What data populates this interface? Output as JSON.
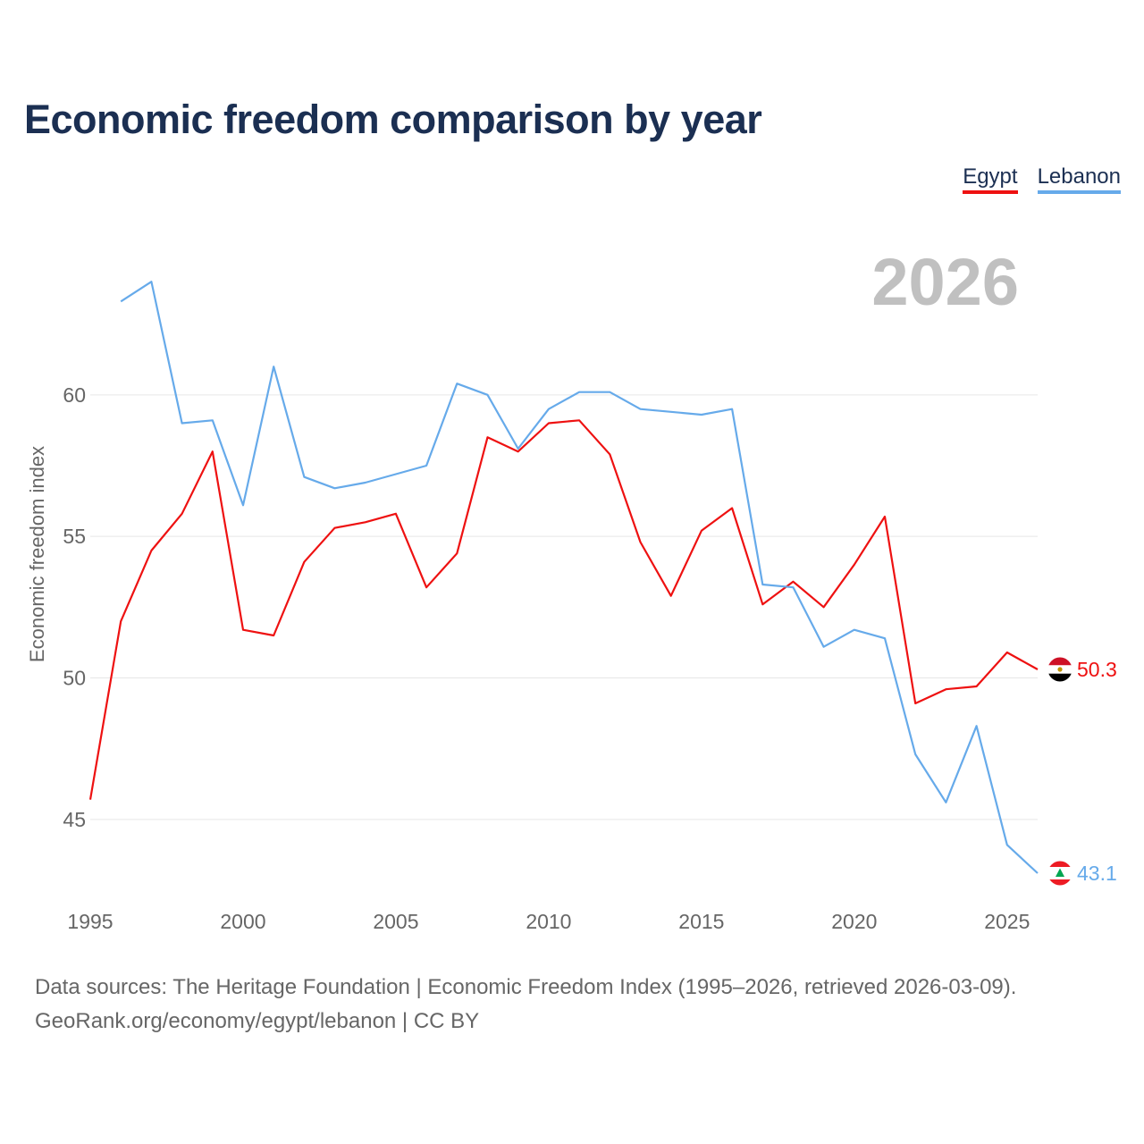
{
  "colors": {
    "egypt": "#ee1111",
    "lebanon": "#66aaea",
    "title": "#1b2f52",
    "grid": "#e6e6e6",
    "year": "#c0c0c0",
    "axis_text": "#666666"
  },
  "chart_data": {
    "type": "line",
    "title": "Economic freedom comparison by year",
    "xlabel": "",
    "ylabel": "Economic freedom index",
    "year_label": "2026",
    "xlim": [
      1995,
      2026
    ],
    "ylim": [
      41.9,
      65.9
    ],
    "x_ticks": [
      1995,
      2000,
      2005,
      2010,
      2015,
      2020,
      2025
    ],
    "y_ticks": [
      45,
      50,
      55,
      60
    ],
    "legend_position": "top-right",
    "series": [
      {
        "name": "Egypt",
        "color": "#ee1111",
        "end_label": "50.3",
        "flag_icon": "egypt-flag-icon",
        "x": [
          1995,
          1996,
          1997,
          1998,
          1999,
          2000,
          2001,
          2002,
          2003,
          2004,
          2005,
          2006,
          2007,
          2008,
          2009,
          2010,
          2011,
          2012,
          2013,
          2014,
          2015,
          2016,
          2017,
          2018,
          2019,
          2020,
          2021,
          2022,
          2023,
          2024,
          2025,
          2026
        ],
        "values": [
          45.7,
          52.0,
          54.5,
          55.8,
          58.0,
          51.7,
          51.5,
          54.1,
          55.3,
          55.5,
          55.8,
          53.2,
          54.4,
          58.5,
          58.0,
          59.0,
          59.1,
          57.9,
          54.8,
          52.9,
          55.2,
          56.0,
          52.6,
          53.4,
          52.5,
          54.0,
          55.7,
          49.1,
          49.6,
          49.7,
          50.9,
          50.3
        ]
      },
      {
        "name": "Lebanon",
        "color": "#66aaea",
        "end_label": "43.1",
        "flag_icon": "lebanon-flag-icon",
        "x": [
          1996,
          1997,
          1998,
          1999,
          2000,
          2001,
          2002,
          2003,
          2004,
          2005,
          2006,
          2007,
          2008,
          2009,
          2010,
          2011,
          2012,
          2013,
          2014,
          2015,
          2016,
          2017,
          2018,
          2019,
          2020,
          2021,
          2022,
          2023,
          2024,
          2025,
          2026
        ],
        "values": [
          63.3,
          64.0,
          59.0,
          59.1,
          56.1,
          61.0,
          57.1,
          56.7,
          56.9,
          57.2,
          57.5,
          60.4,
          60.0,
          58.1,
          59.5,
          60.1,
          60.1,
          59.5,
          59.4,
          59.3,
          59.5,
          53.3,
          53.2,
          51.1,
          51.7,
          51.4,
          47.3,
          45.6,
          48.3,
          44.1,
          43.1
        ]
      }
    ]
  },
  "footer": {
    "source_line": "Data sources: The Heritage Foundation | Economic Freedom Index (1995–2026, retrieved 2026-03-09).",
    "credit_line": "GeoRank.org/economy/egypt/lebanon | CC BY"
  }
}
